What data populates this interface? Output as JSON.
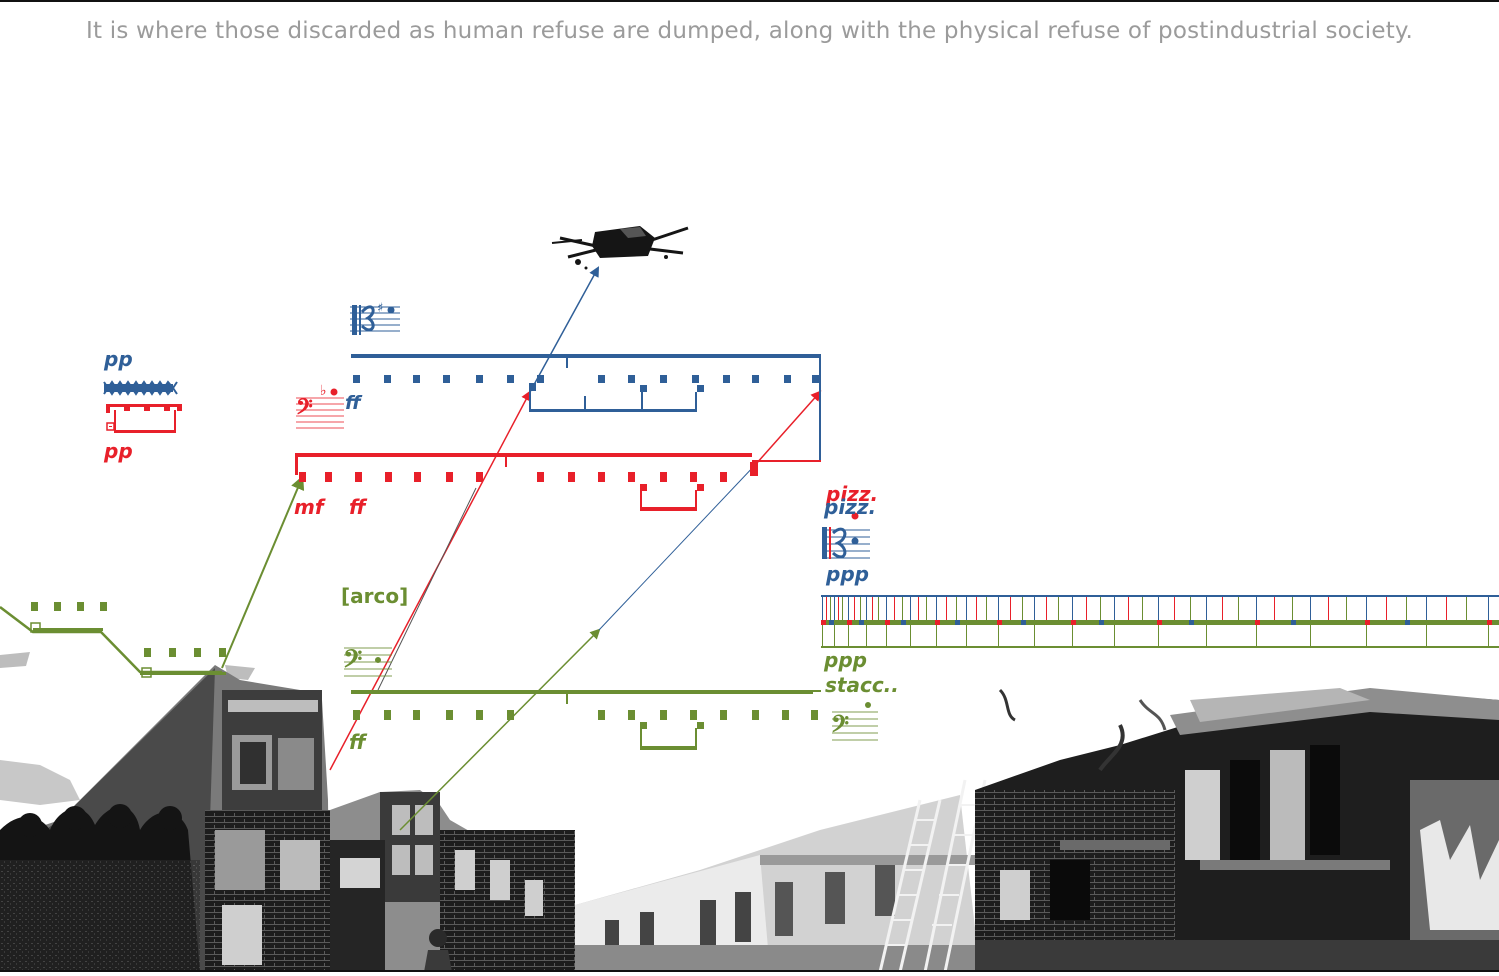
{
  "caption": "It is where those discarded as human refuse are dumped, along with the physical refuse of postindustrial society.",
  "colors": {
    "blue": "#2f5f98",
    "red": "#e8202a",
    "green": "#6b8e32",
    "caption_gray": "#9b9b9b",
    "scenery_dark": "#1a1a1a",
    "scenery_mid": "#7a7a7a",
    "scenery_light": "#bdbdbd"
  },
  "markings": {
    "blue_pp": "pp",
    "red_pp": "pp",
    "red_mf": "mf",
    "red_ff": "ff",
    "blue_ff": "ff",
    "green_arco": "[arco]",
    "green_ff": "ff",
    "red_pizz": "pizz.",
    "blue_pizz": "pizz.",
    "blue_ppp": "ppp",
    "green_ppp": "ppp",
    "green_stacc": "stacc.."
  },
  "icons": [
    "drone-icon",
    "bass-clef-icon",
    "alto-clef-icon",
    "sharp-icon",
    "flat-icon",
    "tremolo-zigzag-icon"
  ]
}
